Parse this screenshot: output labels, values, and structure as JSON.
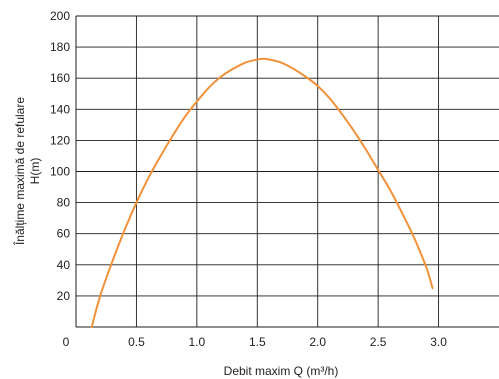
{
  "chart_data": {
    "type": "line",
    "title": "",
    "xlabel": "Debit maxim Q (m³/h)",
    "ylabel_lines": [
      "Înălțime maximă de refulare",
      "H(m)"
    ],
    "xlim": [
      0,
      3.5
    ],
    "ylim": [
      0,
      200
    ],
    "x_ticks": [
      0,
      0.5,
      1.0,
      1.5,
      2.0,
      2.5,
      3.0
    ],
    "x_tick_labels": [
      "0",
      "0.5",
      "1.0",
      "1.5",
      "2.0",
      "2.5",
      "3.0"
    ],
    "y_ticks": [
      20,
      40,
      60,
      80,
      100,
      120,
      140,
      160,
      180,
      200
    ],
    "y_tick_labels": [
      "20",
      "40",
      "60",
      "80",
      "100",
      "120",
      "140",
      "160",
      "180",
      "200"
    ],
    "grid": true,
    "legend": "none",
    "series": [
      {
        "color": "#f0923a",
        "x": [
          0.13,
          0.2,
          0.3,
          0.4,
          0.5,
          0.6,
          0.7,
          0.8,
          0.9,
          1.0,
          1.1,
          1.2,
          1.3,
          1.4,
          1.5,
          1.55,
          1.6,
          1.7,
          1.8,
          1.9,
          2.0,
          2.1,
          2.2,
          2.3,
          2.4,
          2.5,
          2.6,
          2.7,
          2.8,
          2.9,
          2.95
        ],
        "y": [
          0,
          20,
          42,
          62,
          80,
          96,
          110,
          123,
          135,
          145,
          154,
          161,
          166,
          170,
          172,
          172.5,
          172,
          170,
          166,
          161,
          155,
          147,
          137,
          126,
          114,
          101,
          88,
          73,
          57,
          38,
          25
        ]
      }
    ]
  }
}
